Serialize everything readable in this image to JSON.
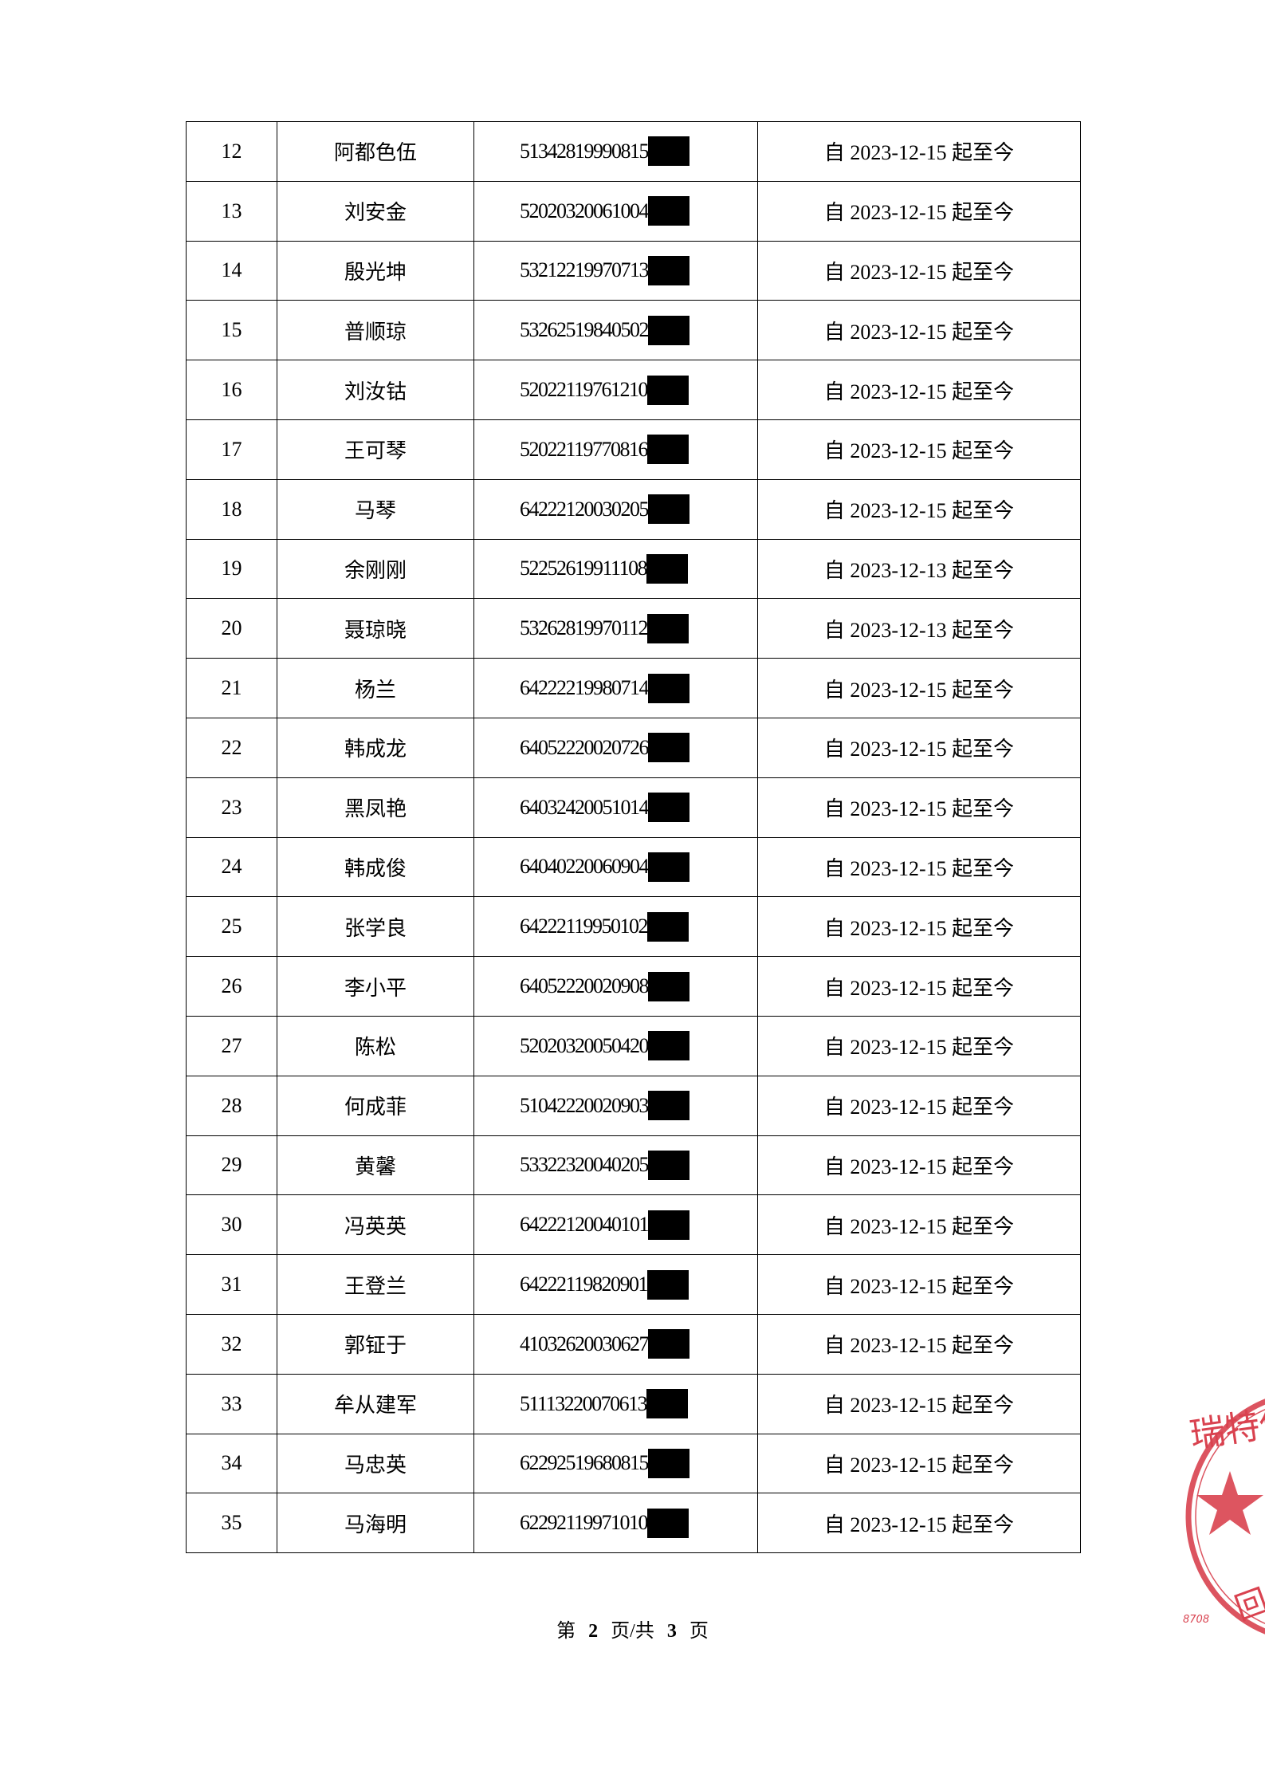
{
  "rows": [
    {
      "no": "12",
      "name": "阿都色伍",
      "id": "51342819990815",
      "period": "自 2023-12-15 起至今"
    },
    {
      "no": "13",
      "name": "刘安金",
      "id": "52020320061004",
      "period": "自 2023-12-15 起至今"
    },
    {
      "no": "14",
      "name": "殷光坤",
      "id": "53212219970713",
      "period": "自 2023-12-15 起至今"
    },
    {
      "no": "15",
      "name": "普顺琼",
      "id": "53262519840502",
      "period": "自 2023-12-15 起至今"
    },
    {
      "no": "16",
      "name": "刘汝钴",
      "id": "52022119761210",
      "period": "自 2023-12-15 起至今"
    },
    {
      "no": "17",
      "name": "王可琴",
      "id": "52022119770816",
      "period": "自 2023-12-15 起至今"
    },
    {
      "no": "18",
      "name": "马琴",
      "id": "64222120030205",
      "period": "自 2023-12-15 起至今"
    },
    {
      "no": "19",
      "name": "余刚刚",
      "id": "52252619911108",
      "period": "自 2023-12-13 起至今"
    },
    {
      "no": "20",
      "name": "聂琼晓",
      "id": "53262819970112",
      "period": "自 2023-12-13 起至今"
    },
    {
      "no": "21",
      "name": "杨兰",
      "id": "64222219980714",
      "period": "自 2023-12-15 起至今"
    },
    {
      "no": "22",
      "name": "韩成龙",
      "id": "64052220020726",
      "period": "自 2023-12-15 起至今"
    },
    {
      "no": "23",
      "name": "黑凤艳",
      "id": "64032420051014",
      "period": "自 2023-12-15 起至今"
    },
    {
      "no": "24",
      "name": "韩成俊",
      "id": "64040220060904",
      "period": "自 2023-12-15 起至今"
    },
    {
      "no": "25",
      "name": "张学良",
      "id": "64222119950102",
      "period": "自 2023-12-15 起至今"
    },
    {
      "no": "26",
      "name": "李小平",
      "id": "64052220020908",
      "period": "自 2023-12-15 起至今"
    },
    {
      "no": "27",
      "name": "陈松",
      "id": "52020320050420",
      "period": "自 2023-12-15 起至今"
    },
    {
      "no": "28",
      "name": "何成菲",
      "id": "51042220020903",
      "period": "自 2023-12-15 起至今"
    },
    {
      "no": "29",
      "name": "黄馨",
      "id": "53322320040205",
      "period": "自 2023-12-15 起至今"
    },
    {
      "no": "30",
      "name": "冯英英",
      "id": "64222120040101",
      "period": "自 2023-12-15 起至今"
    },
    {
      "no": "31",
      "name": "王登兰",
      "id": "64222119820901",
      "period": "自 2023-12-15 起至今"
    },
    {
      "no": "32",
      "name": "郭钲于",
      "id": "41032620030627",
      "period": "自 2023-12-15 起至今"
    },
    {
      "no": "33",
      "name": "牟从建军",
      "id": "51113220070613",
      "period": "自 2023-12-15 起至今"
    },
    {
      "no": "34",
      "name": "马忠英",
      "id": "62292519680815",
      "period": "自 2023-12-15 起至今"
    },
    {
      "no": "35",
      "name": "马海明",
      "id": "62292119971010",
      "period": "自 2023-12-15 起至今"
    }
  ],
  "footer": {
    "prefix": "第",
    "current": "2",
    "middle": "页/共",
    "total": "3",
    "suffix": "页"
  },
  "stamp": {
    "text": "瑞特供",
    "number": "8708",
    "bottom_char": "回",
    "color": "#d9424f"
  }
}
